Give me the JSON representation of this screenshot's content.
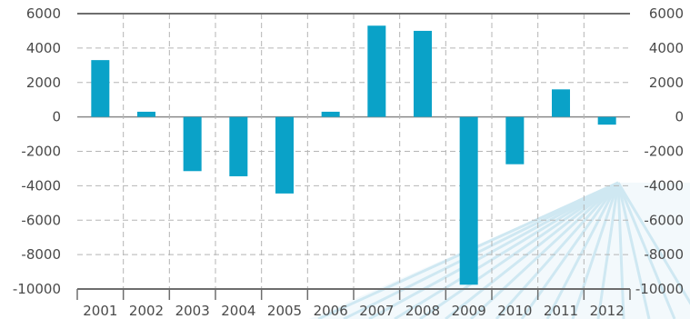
{
  "chart_data": {
    "type": "bar",
    "categories": [
      "2001",
      "2002",
      "2003",
      "2004",
      "2005",
      "2006",
      "2007",
      "2008",
      "2009",
      "2010",
      "2011",
      "2012"
    ],
    "values": [
      3300,
      300,
      -3150,
      -3450,
      -4450,
      300,
      5300,
      5000,
      -9750,
      -2750,
      1600,
      -450
    ],
    "ylim": [
      -10000,
      6000
    ],
    "yticks": [
      6000,
      4000,
      2000,
      0,
      -2000,
      -4000,
      -6000,
      -8000,
      -10000
    ],
    "ytick_labels": [
      "6000",
      "4000",
      "2000",
      "0",
      "-2000",
      "-4000",
      "-6000",
      "-8000",
      "-10000"
    ],
    "title": "",
    "xlabel": "",
    "ylabel": "",
    "grid": true,
    "legend": "none",
    "colors": {
      "bar": "#0aa2c8",
      "grid": "#b5b5b5",
      "axis": "#6d6d6d",
      "text": "#4a4a4a",
      "rays": "#cfe8f2"
    }
  }
}
